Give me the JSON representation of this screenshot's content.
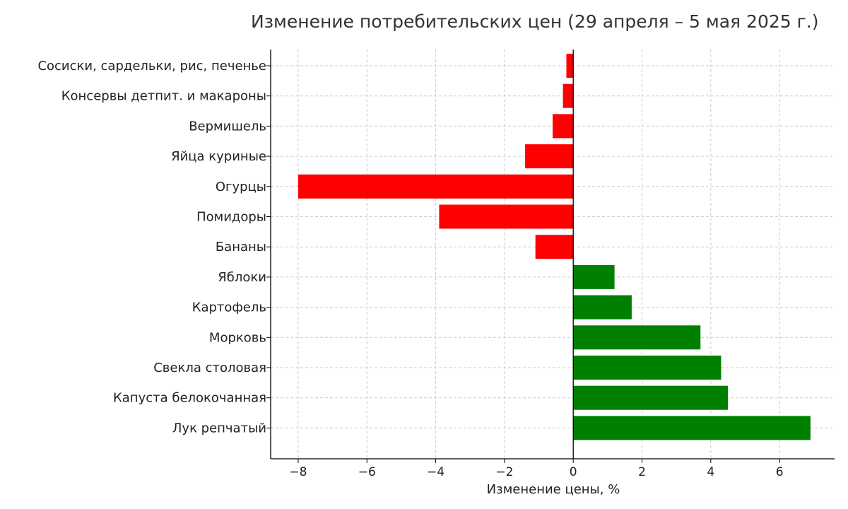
{
  "chart_data": {
    "type": "bar",
    "orientation": "horizontal",
    "title": "Изменение потребительских цен (29 апреля – 5 мая 2025 г.)",
    "xlabel": "Изменение цены, %",
    "ylabel": "",
    "xlim": [
      -8.8,
      7.6
    ],
    "x_ticks": [
      -8,
      -6,
      -4,
      -2,
      0,
      2,
      4,
      6
    ],
    "x_tick_labels": [
      "−8",
      "−6",
      "−4",
      "−2",
      "0",
      "2",
      "4",
      "6"
    ],
    "grid": true,
    "legend": "none",
    "categories": [
      "Сосиски, сардельки, рис, печенье",
      "Консервы детпит. и макароны",
      "Вермишель",
      "Яйца куриные",
      "Огурцы",
      "Помидоры",
      "Бананы",
      "Яблоки",
      "Картофель",
      "Морковь",
      "Свекла столовая",
      "Капуста белокочанная",
      "Лук репчатый"
    ],
    "values": [
      -0.2,
      -0.3,
      -0.6,
      -1.4,
      -8.0,
      -3.9,
      -1.1,
      1.2,
      1.7,
      3.7,
      4.3,
      4.5,
      6.9
    ],
    "colors": {
      "negative": "#ff0000",
      "positive": "#008000",
      "zero_line": "#000000",
      "grid": "#cccccc"
    }
  }
}
